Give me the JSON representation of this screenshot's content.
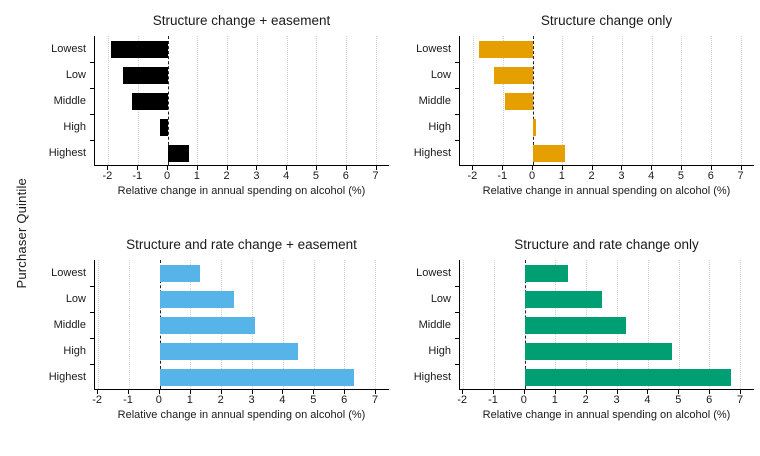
{
  "figure": {
    "y_axis_title": "Purchaser Quintile",
    "x_axis_title": "Relative change in annual spending on alcohol (%)",
    "categories": [
      "Lowest",
      "Low",
      "Middle",
      "High",
      "Highest"
    ],
    "x_ticks": [
      -2,
      -1,
      0,
      1,
      2,
      3,
      4,
      5,
      6,
      7
    ],
    "background_color": "#ffffff",
    "axis_color": "#000000",
    "gridline_color": "#d2d2d2",
    "zero_line_color": "#222222",
    "text_color": "#1a1a1a"
  },
  "chart_data": [
    {
      "type": "bar",
      "orientation": "horizontal",
      "title": "Structure change + easement",
      "color": "#000000",
      "categories": [
        "Lowest",
        "Low",
        "Middle",
        "High",
        "Highest"
      ],
      "values": [
        -1.9,
        -1.5,
        -1.2,
        -0.25,
        0.7
      ],
      "xlabel": "Relative change in annual spending on alcohol (%)",
      "ylabel": "Purchaser Quintile",
      "xlim": [
        -2.45,
        7.45
      ],
      "x_ticks": [
        -2,
        -1,
        0,
        1,
        2,
        3,
        4,
        5,
        6,
        7
      ],
      "zero_line": true,
      "grid": true,
      "legend": false
    },
    {
      "type": "bar",
      "orientation": "horizontal",
      "title": "Structure change only",
      "color": "#E69F00",
      "categories": [
        "Lowest",
        "Low",
        "Middle",
        "High",
        "Highest"
      ],
      "values": [
        -1.8,
        -1.3,
        -0.95,
        0.1,
        1.1
      ],
      "xlabel": "Relative change in annual spending on alcohol (%)",
      "ylabel": "Purchaser Quintile",
      "xlim": [
        -2.45,
        7.45
      ],
      "x_ticks": [
        -2,
        -1,
        0,
        1,
        2,
        3,
        4,
        5,
        6,
        7
      ],
      "zero_line": true,
      "grid": true,
      "legend": false
    },
    {
      "type": "bar",
      "orientation": "horizontal",
      "title": "Structure and rate change + easement",
      "color": "#56B4E9",
      "categories": [
        "Lowest",
        "Low",
        "Middle",
        "High",
        "Highest"
      ],
      "values": [
        1.3,
        2.4,
        3.1,
        4.5,
        6.3
      ],
      "xlabel": "Relative change in annual spending on alcohol (%)",
      "ylabel": "Purchaser Quintile",
      "xlim": [
        -2.1,
        7.45
      ],
      "x_ticks": [
        -2,
        -1,
        0,
        1,
        2,
        3,
        4,
        5,
        6,
        7
      ],
      "zero_line": true,
      "grid": true,
      "legend": false
    },
    {
      "type": "bar",
      "orientation": "horizontal",
      "title": "Structure and rate change only",
      "color": "#009E73",
      "categories": [
        "Lowest",
        "Low",
        "Middle",
        "High",
        "Highest"
      ],
      "values": [
        1.4,
        2.5,
        3.3,
        4.8,
        6.7
      ],
      "xlabel": "Relative change in annual spending on alcohol (%)",
      "ylabel": "Purchaser Quintile",
      "xlim": [
        -2.1,
        7.45
      ],
      "x_ticks": [
        -2,
        -1,
        0,
        1,
        2,
        3,
        4,
        5,
        6,
        7
      ],
      "zero_line": true,
      "grid": true,
      "legend": false
    }
  ]
}
